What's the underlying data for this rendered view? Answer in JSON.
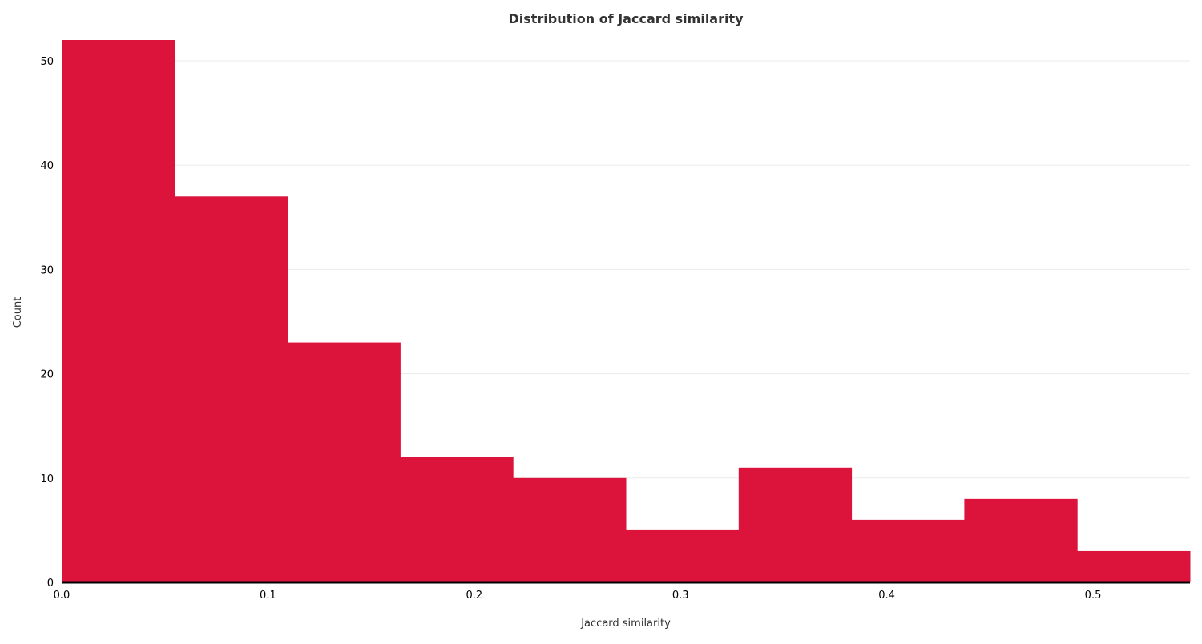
{
  "chart_data": {
    "type": "bar",
    "title": "Distribution of Jaccard similarity",
    "xlabel": "Jaccard similarity",
    "ylabel": "Count",
    "bin_edges": [
      0.0,
      0.0547,
      0.1094,
      0.1641,
      0.2188,
      0.2735,
      0.3282,
      0.3829,
      0.4376,
      0.4923,
      0.547
    ],
    "values": [
      52,
      37,
      23,
      12,
      10,
      5,
      11,
      6,
      8,
      3
    ],
    "xlim": [
      0.0,
      0.547
    ],
    "ylim": [
      0,
      52
    ],
    "xticks": [
      0.0,
      0.1,
      0.2,
      0.3,
      0.4,
      0.5
    ],
    "xtick_labels": [
      "0.0",
      "0.1",
      "0.2",
      "0.3",
      "0.4",
      "0.5"
    ],
    "yticks": [
      0,
      10,
      20,
      30,
      40,
      50
    ],
    "ytick_labels": [
      "0",
      "10",
      "20",
      "30",
      "40",
      "50"
    ],
    "grid": "horizontal",
    "bar_color": "#DC143C"
  }
}
